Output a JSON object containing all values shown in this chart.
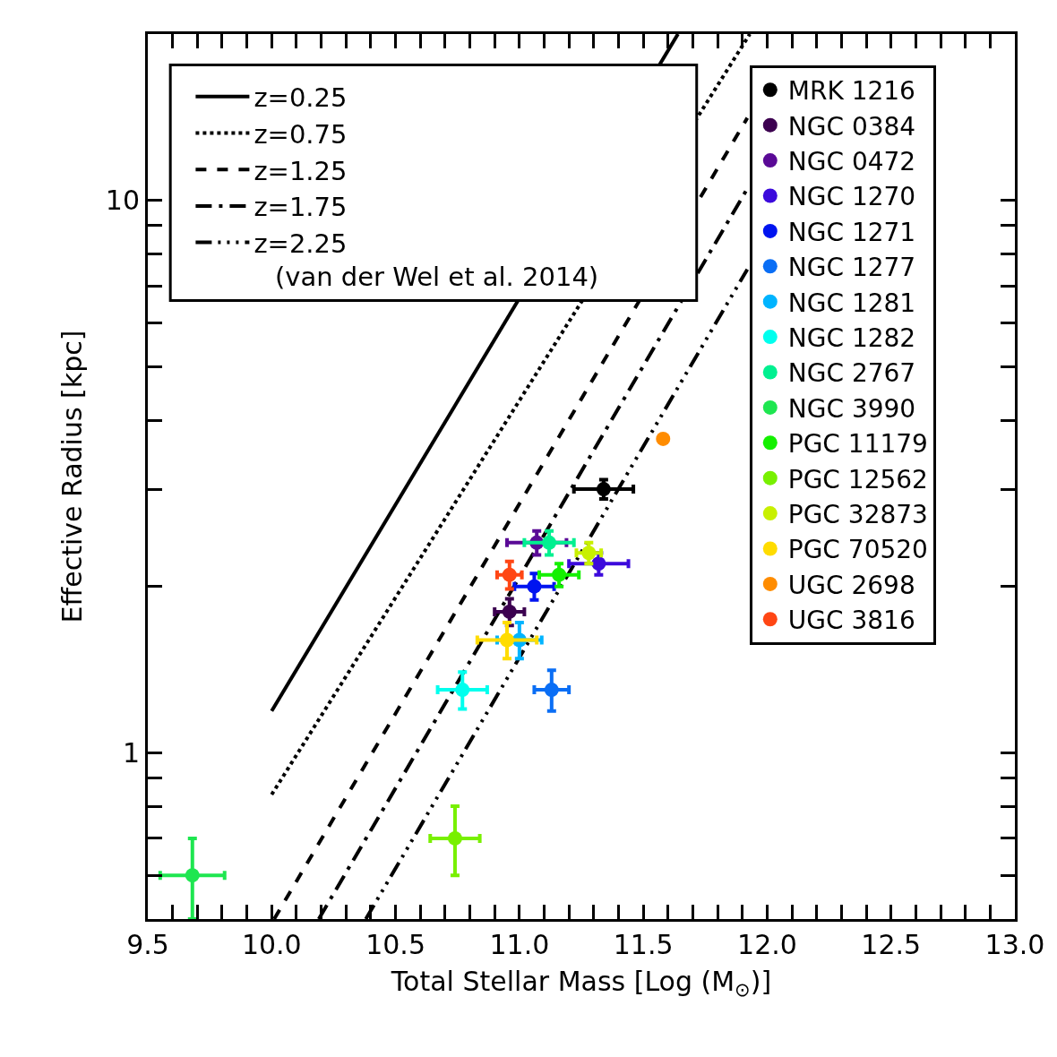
{
  "chart_data": {
    "type": "scatter",
    "xlabel": "Total Stellar Mass [Log (M$_{⊙}$)]",
    "ylabel": "Effective Radius [kpc]",
    "annotations": [
      "(van der Wel et al. 2014)"
    ],
    "log": "y",
    "legend": "top right",
    "marker": "circle",
    "xlim": [
      9.5,
      13.0
    ],
    "ylim": [
      0.5,
      20
    ],
    "xticks": [
      9.5,
      {
        "value": 9.6,
        "label": null
      },
      {
        "value": 9.7,
        "label": null
      },
      {
        "value": 9.8,
        "label": null
      },
      {
        "value": 9.9,
        "label": null
      },
      {
        "value": 10,
        "label": "10.0"
      },
      {
        "value": 10.1,
        "label": null
      },
      {
        "value": 10.2,
        "label": null
      },
      {
        "value": 10.3,
        "label": null
      },
      {
        "value": 10.4,
        "label": null
      },
      10.5,
      {
        "value": 10.6,
        "label": null
      },
      {
        "value": 10.7,
        "label": null
      },
      {
        "value": 10.8,
        "label": null
      },
      {
        "value": 10.9,
        "label": null
      },
      {
        "value": 11,
        "label": "11.0"
      },
      {
        "value": 11.1,
        "label": null
      },
      {
        "value": 11.2,
        "label": null
      },
      {
        "value": 11.3,
        "label": null
      },
      {
        "value": 11.4,
        "label": null
      },
      11.5,
      {
        "value": 11.6,
        "label": null
      },
      {
        "value": 11.7,
        "label": null
      },
      {
        "value": 11.8,
        "label": null
      },
      {
        "value": 11.9,
        "label": null
      },
      {
        "value": 12,
        "label": "12.0"
      },
      {
        "value": 12.1,
        "label": null
      },
      {
        "value": 12.2,
        "label": null
      },
      {
        "value": 12.3,
        "label": null
      },
      {
        "value": 12.4,
        "label": null
      },
      12.5,
      {
        "value": 12.6,
        "label": null
      },
      {
        "value": 12.7,
        "label": null
      },
      {
        "value": 12.8,
        "label": null
      },
      {
        "value": 12.9,
        "label": null
      },
      {
        "value": 13,
        "label": "13.0"
      }
    ],
    "yticks": [
      {
        "value": 0.5,
        "label": null
      },
      {
        "value": 0.6,
        "label": null
      },
      {
        "value": 0.7,
        "label": null
      },
      {
        "value": 0.8,
        "label": null
      },
      {
        "value": 0.9,
        "label": null
      },
      1,
      {
        "value": 2,
        "label": null
      },
      {
        "value": 3,
        "label": null
      },
      {
        "value": 4,
        "label": null
      },
      {
        "value": 5,
        "label": null
      },
      {
        "value": 6,
        "label": null
      },
      {
        "value": 7,
        "label": null
      },
      {
        "value": 8,
        "label": null
      },
      {
        "value": 9,
        "label": null
      },
      10,
      {
        "value": 20,
        "label": null
      }
    ],
    "series": [
      {
        "name": "z=0.25",
        "type": "line",
        "marker": "none",
        "line_style": "solid",
        "color": "#000000",
        "x": [
          10.0,
          11.64
        ],
        "values": [
          1.19,
          20
        ]
      },
      {
        "name": "z=0.75",
        "type": "line",
        "marker": "none",
        "line_style": "dotted",
        "color": "#000000",
        "x": [
          10.0,
          11.93
        ],
        "values": [
          0.84,
          20
        ]
      },
      {
        "name": "z=1.25",
        "type": "line",
        "marker": "none",
        "line_style": "dashed",
        "color": "#000000",
        "x": [
          10.01,
          11.92
        ],
        "values": [
          0.5,
          14.1
        ]
      },
      {
        "name": "z=1.75",
        "type": "line",
        "marker": "none",
        "line_style": "dashdot",
        "color": "#000000",
        "x": [
          10.19,
          11.92
        ],
        "values": [
          0.5,
          10.5
        ]
      },
      {
        "name": "z=2.25",
        "type": "line",
        "marker": "none",
        "line_style": "dashdotdotdot",
        "color": "#000000",
        "x": [
          10.38,
          11.92
        ],
        "values": [
          0.5,
          7.5
        ]
      },
      {
        "name": "MRK 1216",
        "color": "#000000",
        "x": [
          11.34
        ],
        "values": [
          3.0
        ],
        "errors": [
          0.12
        ],
        "xerrors": [
          0.12
        ]
      },
      {
        "name": "NGC 0384",
        "color": "#3c0050",
        "x": [
          10.96
        ],
        "values": [
          1.8
        ],
        "errors": [
          0.1
        ],
        "xerrors": [
          0.06
        ]
      },
      {
        "name": "NGC 0472",
        "color": "#5a0a96",
        "x": [
          11.07
        ],
        "values": [
          2.4
        ],
        "errors": [
          0.12
        ],
        "xerrors": [
          0.12
        ]
      },
      {
        "name": "NGC 1270",
        "color": "#3c0adc",
        "x": [
          11.32
        ],
        "values": [
          2.2
        ],
        "errors": [
          0.1
        ],
        "xerrors": [
          0.12
        ]
      },
      {
        "name": "NGC 1271",
        "color": "#0014f0",
        "x": [
          11.06
        ],
        "values": [
          2.0
        ],
        "errors": [
          0.11
        ],
        "xerrors": [
          0.08
        ]
      },
      {
        "name": "NGC 1277",
        "color": "#0a6ef5",
        "x": [
          11.13
        ],
        "values": [
          1.3
        ],
        "errors": [
          0.11
        ],
        "xerrors": [
          0.07
        ]
      },
      {
        "name": "NGC 1281",
        "color": "#00b4ff",
        "x": [
          11.0
        ],
        "values": [
          1.6
        ],
        "errors": [
          0.12
        ],
        "xerrors": [
          0.09
        ]
      },
      {
        "name": "NGC 1282",
        "color": "#00ffee",
        "x": [
          10.77
        ],
        "values": [
          1.3
        ],
        "errors": [
          0.1
        ],
        "xerrors": [
          0.1
        ]
      },
      {
        "name": "NGC 2767",
        "color": "#00f090",
        "x": [
          11.12
        ],
        "values": [
          2.4
        ],
        "errors": [
          0.12
        ],
        "xerrors": [
          0.1
        ]
      },
      {
        "name": "NGC 3990",
        "color": "#1ee650",
        "x": [
          9.68
        ],
        "values": [
          0.6
        ],
        "errors": [
          0.1
        ],
        "xerrors": [
          0.13
        ]
      },
      {
        "name": "PGC 11179",
        "color": "#14f000",
        "x": [
          11.16
        ],
        "values": [
          2.1
        ],
        "errors": [
          0.1
        ],
        "xerrors": [
          0.08
        ]
      },
      {
        "name": "PGC 12562",
        "color": "#78f000",
        "x": [
          10.74
        ],
        "values": [
          0.7
        ],
        "errors": [
          0.1
        ],
        "xerrors": [
          0.1
        ]
      },
      {
        "name": "PGC 32873",
        "color": "#c8f000",
        "x": [
          11.28
        ],
        "values": [
          2.3
        ],
        "errors": [
          0.1
        ],
        "xerrors": [
          0.05
        ]
      },
      {
        "name": "PGC 70520",
        "color": "#ffdc00",
        "x": [
          10.95
        ],
        "values": [
          1.6
        ],
        "errors": [
          0.12
        ],
        "xerrors": [
          0.12
        ]
      },
      {
        "name": "UGC 2698",
        "color": "#ff8c00",
        "x": [
          11.58
        ],
        "values": [
          3.7
        ]
      },
      {
        "name": "UGC 3816",
        "color": "#ff4614",
        "x": [
          10.96
        ],
        "values": [
          2.1
        ],
        "errors": [
          0.12
        ],
        "xerrors": [
          0.05
        ]
      }
    ]
  }
}
